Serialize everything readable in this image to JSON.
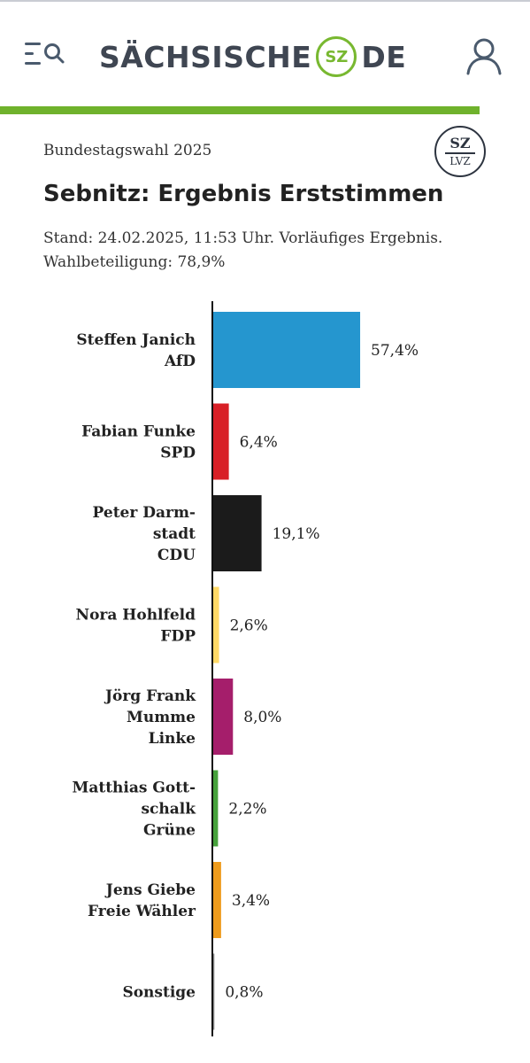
{
  "header": {
    "logo_left": "SÄCHSISCHE",
    "logo_badge": "SZ",
    "logo_right": "DE",
    "icons": [
      "menu-search-icon",
      "user-icon"
    ],
    "brand_color": "#6fb22c"
  },
  "article": {
    "supertitle": "Bundestagswahl 2025",
    "badge_top": "SZ",
    "badge_bottom": "LVZ",
    "title": "Sebnitz: Ergebnis Erststimmen",
    "subtitle": "Stand: 24.02.2025, 11:53 Uhr. Vorläufiges Ergebnis. Wahlbeteiligung: 78,9%"
  },
  "chart_data": {
    "type": "bar",
    "orientation": "horizontal",
    "categories": [
      [
        "Steffen Janich",
        "AfD"
      ],
      [
        "Fabian Funke",
        "SPD"
      ],
      [
        "Peter Darm-",
        "stadt",
        "CDU"
      ],
      [
        "Nora Hohlfeld",
        "FDP"
      ],
      [
        "Jörg Frank",
        "Mumme",
        "Linke"
      ],
      [
        "Matthias Gott-",
        "schalk",
        "Grüne"
      ],
      [
        "Jens Giebe",
        "Freie Wähler"
      ],
      [
        "Sonstige"
      ]
    ],
    "values": [
      57.4,
      6.4,
      19.1,
      2.6,
      8.0,
      2.2,
      3.4,
      0.8
    ],
    "value_labels": [
      "57,4%",
      "6,4%",
      "19,1%",
      "2,6%",
      "8,0%",
      "2,2%",
      "3,4%",
      "0,8%"
    ],
    "colors": [
      "#2596cf",
      "#d81f26",
      "#1b1b1b",
      "#ffd966",
      "#a51e6b",
      "#46a13b",
      "#ee9b1c",
      "#8c8c8c"
    ],
    "xlim": [
      0,
      100
    ],
    "grid": false,
    "legend": "none"
  }
}
